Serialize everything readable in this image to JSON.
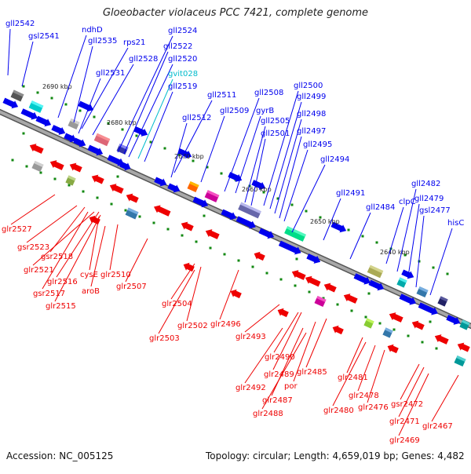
{
  "title": "Gloeobacter violaceus PCC 7421, complete genome",
  "accession": "Accession: NC_005125",
  "topology": "Topology: circular; Length: 4,659,019 bp; Genes: 4,482",
  "colors": {
    "forward_gene": "#0000ee",
    "reverse_gene": "#ee0000",
    "rna_gene": "#00bbcc",
    "backbone": "#7a7a7a",
    "tick": "#118811"
  },
  "scale_labels": [
    "2690 kbp",
    "2680 kbp",
    "2670 kbp",
    "2660 kbp",
    "2650 kbp",
    "2640 kbp"
  ],
  "forward_genes": [
    "gll2542",
    "gsl2541",
    "ndhD",
    "gll2535",
    "rps21",
    "gll2528",
    "gll2531",
    "gll2524",
    "gll2522",
    "gll2520",
    "gvit028",
    "gll2519",
    "gll2511",
    "gll2512",
    "gll2509",
    "gll2508",
    "gyrB",
    "gll2505",
    "gll2501",
    "gll2500",
    "gll2499",
    "gll2498",
    "gll2497",
    "gll2495",
    "gll2494",
    "gll2491",
    "gll2484",
    "clpC",
    "gll2482",
    "gll2479",
    "gsl2477",
    "hisC"
  ],
  "reverse_genes": [
    "glr2527",
    "gsr2523",
    "gsr2518",
    "glr2521",
    "cysE",
    "glr2516",
    "gsr2517",
    "aroB",
    "glr2510",
    "glr2515",
    "glr2507",
    "glr2504",
    "glr2502",
    "glr2503",
    "glr2496",
    "glr2493",
    "glr2490",
    "glr2489",
    "glr2485",
    "glr2492",
    "por",
    "glr2487",
    "glr2488",
    "glr2481",
    "glr2478",
    "glr2476",
    "glr2480",
    "gsr2472",
    "glr2471",
    "glr2467",
    "glr2469"
  ]
}
